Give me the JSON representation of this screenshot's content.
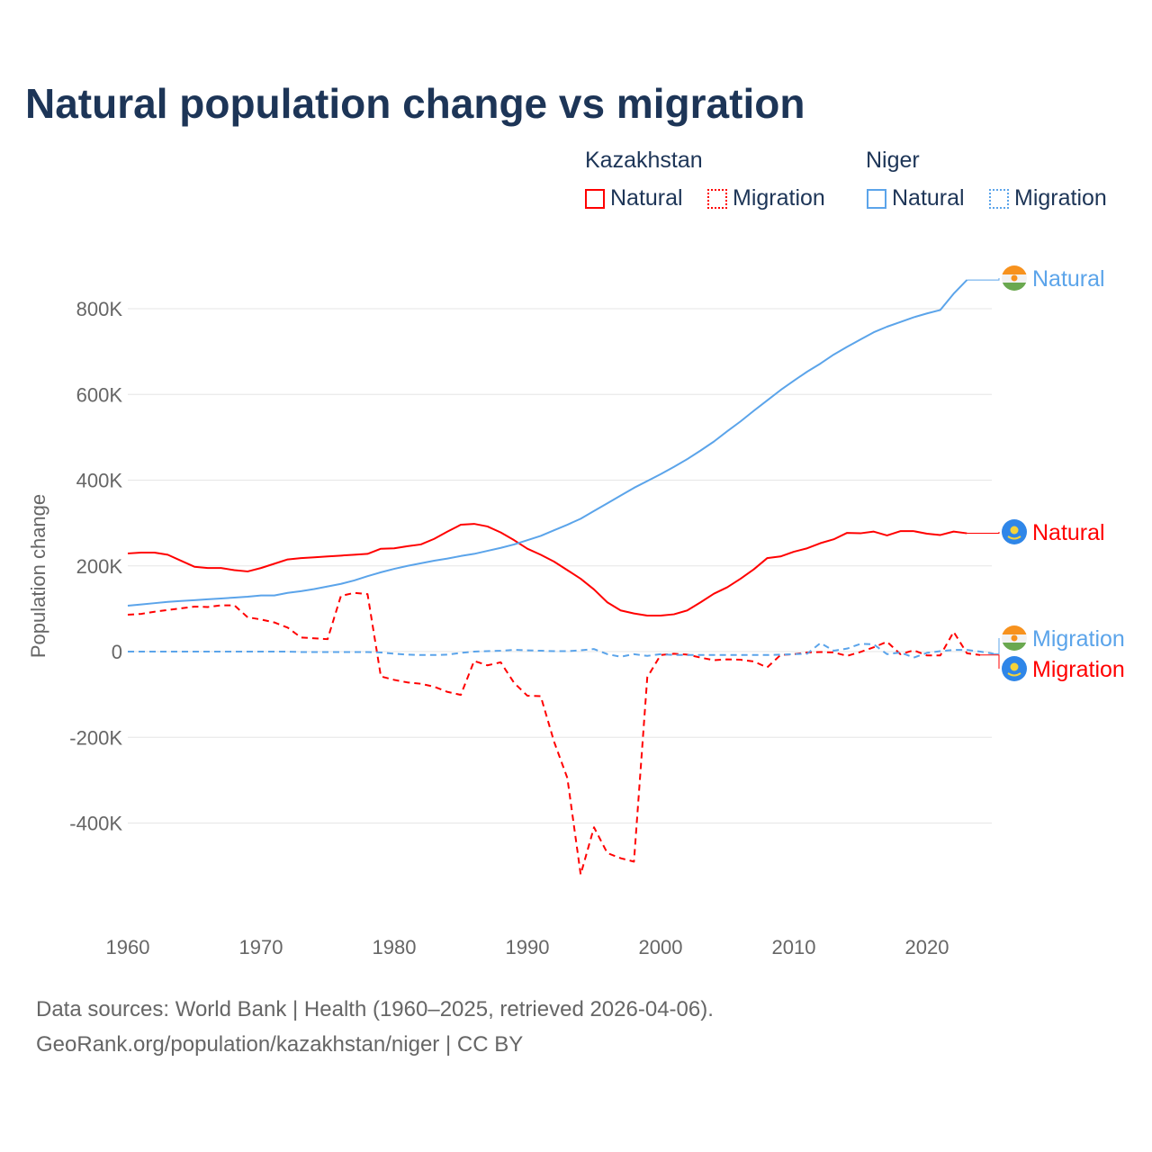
{
  "title": "Natural population change vs migration",
  "legend": {
    "groups": [
      {
        "name": "Kazakhstan",
        "color": "#ff0000",
        "items": [
          "Natural",
          "Migration"
        ]
      },
      {
        "name": "Niger",
        "color": "#5ba4ea",
        "items": [
          "Natural",
          "Migration"
        ]
      }
    ]
  },
  "footer": {
    "line1": "Data sources: World Bank | Health (1960–2025, retrieved 2026-04-06).",
    "line2": "GeoRank.org/population/kazakhstan/niger | CC BY"
  },
  "chart_data": {
    "type": "line",
    "title": "Natural population change vs migration",
    "xlabel": "",
    "ylabel": "Population change",
    "xlim": [
      1960,
      2025
    ],
    "ylim": [
      -600000,
      900000
    ],
    "xticks": [
      1960,
      1970,
      1980,
      1990,
      2000,
      2010,
      2020
    ],
    "xtick_labels": [
      "1960",
      "1970",
      "1980",
      "1990",
      "2000",
      "2010",
      "2020"
    ],
    "yticks": [
      -400000,
      -200000,
      0,
      200000,
      400000,
      600000,
      800000
    ],
    "ytick_labels": [
      "-400K",
      "-200K",
      "0",
      "200K",
      "400K",
      "600K",
      "800K"
    ],
    "grid": true,
    "legend_position": "top-right",
    "series": [
      {
        "name": "Kazakhstan Natural",
        "end_label": "Natural",
        "country": "Kazakhstan",
        "color": "#ff0000",
        "dash": false,
        "start": 1960,
        "values_k": [
          229,
          231,
          231,
          226,
          212,
          198,
          195,
          195,
          190,
          187,
          195,
          205,
          215,
          218,
          220,
          222,
          224,
          226,
          228,
          240,
          241,
          246,
          250,
          263,
          280,
          296,
          298,
          292,
          278,
          260,
          240,
          226,
          210,
          190,
          170,
          145,
          115,
          96,
          89,
          84,
          84,
          87,
          96,
          115,
          135,
          150,
          170,
          192,
          218,
          222,
          233,
          241,
          253,
          262,
          277,
          276,
          280,
          271,
          281,
          281,
          275,
          272,
          280,
          276
        ]
      },
      {
        "name": "Kazakhstan Migration",
        "end_label": "Migration",
        "country": "Kazakhstan",
        "color": "#ff0000",
        "dash": true,
        "start": 1960,
        "values_k": [
          86,
          88,
          93,
          97,
          101,
          105,
          104,
          108,
          108,
          80,
          75,
          68,
          56,
          33,
          31,
          29,
          130,
          137,
          134,
          -58,
          -66,
          -72,
          -75,
          -82,
          -94,
          -101,
          -22,
          -32,
          -25,
          -73,
          -103,
          -104,
          -210,
          -295,
          -520,
          -410,
          -470,
          -482,
          -490,
          -60,
          -8,
          -5,
          -7,
          -14,
          -20,
          -18,
          -19,
          -23,
          -37,
          -8,
          -6,
          -2,
          -1,
          -2,
          -10,
          -1,
          10,
          23,
          -6,
          3,
          -9,
          -9,
          46,
          -4,
          -8
        ]
      },
      {
        "name": "Niger Natural",
        "end_label": "Natural",
        "country": "Niger",
        "color": "#5ba4ea",
        "dash": false,
        "start": 1960,
        "values_k": [
          107,
          110,
          113,
          116,
          118,
          120,
          122,
          124,
          126,
          128,
          131,
          131,
          137,
          141,
          146,
          152,
          158,
          166,
          176,
          185,
          193,
          200,
          206,
          212,
          217,
          223,
          228,
          235,
          242,
          250,
          260,
          270,
          283,
          296,
          310,
          328,
          346,
          364,
          382,
          398,
          414,
          431,
          449,
          469,
          490,
          514,
          537,
          562,
          586,
          610,
          632,
          653,
          672,
          693,
          711,
          728,
          745,
          758,
          769,
          780,
          789,
          797,
          835,
          867
        ]
      },
      {
        "name": "Niger Migration",
        "end_label": "Migration",
        "country": "Niger",
        "color": "#5ba4ea",
        "dash": true,
        "start": 1960,
        "values_k": [
          0,
          0,
          0,
          0,
          0,
          0,
          0,
          0,
          0,
          0,
          0,
          0,
          0,
          -1,
          -1,
          -1,
          -1,
          -1,
          -1,
          -2,
          -5,
          -7,
          -8,
          -8,
          -7,
          -3,
          0,
          1,
          2,
          4,
          3,
          2,
          1,
          1,
          3,
          6,
          -6,
          -12,
          -6,
          -10,
          -6,
          -8,
          -8,
          -8,
          -8,
          -8,
          -8,
          -8,
          -8,
          -7,
          -6,
          -5,
          20,
          2,
          7,
          18,
          17,
          -6,
          -2,
          -14,
          -3,
          1,
          4,
          4,
          0,
          -5
        ]
      }
    ]
  }
}
